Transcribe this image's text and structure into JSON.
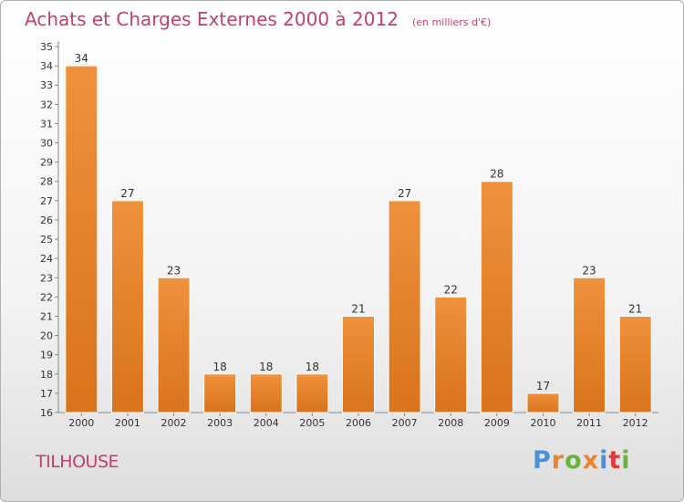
{
  "chart_data": {
    "type": "bar",
    "title": "Achats et Charges Externes 2000 à 2012",
    "subtitle": "(en milliers d'€)",
    "categories": [
      "2000",
      "2001",
      "2002",
      "2003",
      "2004",
      "2005",
      "2006",
      "2007",
      "2008",
      "2009",
      "2010",
      "2011",
      "2012"
    ],
    "values": [
      34,
      27,
      23,
      18,
      18,
      18,
      21,
      27,
      22,
      28,
      17,
      23,
      21
    ],
    "ylim": [
      16,
      35
    ],
    "yticks": [
      16,
      17,
      18,
      19,
      20,
      21,
      22,
      23,
      24,
      25,
      26,
      27,
      28,
      29,
      30,
      31,
      32,
      33,
      34,
      35
    ],
    "grid": false,
    "bar_color": "#f0913c",
    "bar_color_dark": "#d9731c"
  },
  "commune": "TILHOUSE",
  "brand": {
    "letters": [
      "P",
      "r",
      "o",
      "x",
      "i",
      "t",
      "i"
    ],
    "colors": [
      "#4a90d9",
      "#e9852e",
      "#6ab33c",
      "#e9852e",
      "#4a90d9",
      "#e03a3a",
      "#6ab33c"
    ]
  }
}
